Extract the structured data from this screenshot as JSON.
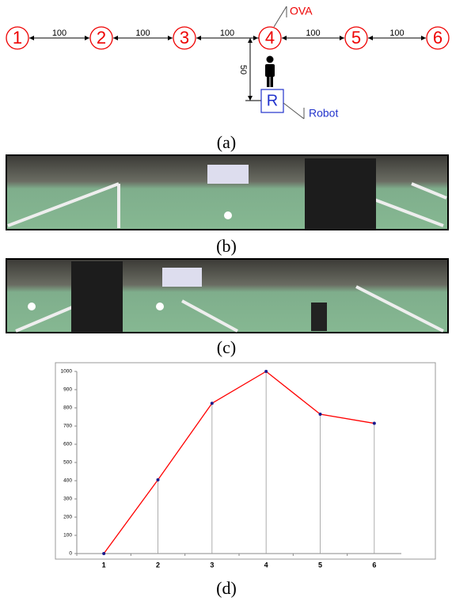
{
  "diagram": {
    "nodes": [
      {
        "label": "1"
      },
      {
        "label": "2"
      },
      {
        "label": "3"
      },
      {
        "label": "4"
      },
      {
        "label": "5"
      },
      {
        "label": "6"
      }
    ],
    "edges": [
      {
        "label": "100"
      },
      {
        "label": "100"
      },
      {
        "label": "100"
      },
      {
        "label": "100"
      },
      {
        "label": "100"
      }
    ],
    "vertical_edge": {
      "label": "50"
    },
    "robot": {
      "label": "R"
    },
    "callouts": {
      "ova": "OVA",
      "robot": "Robot"
    }
  },
  "captions": [
    "(a)",
    "(b)",
    "(c)",
    "(d)"
  ],
  "chart_data": {
    "type": "line",
    "categories": [
      "1",
      "2",
      "3",
      "4",
      "5",
      "6"
    ],
    "values": [
      0,
      405,
      825,
      1000,
      765,
      715
    ],
    "color": "#ff0000",
    "marker_color": "#1a1a8c",
    "ylim": [
      0,
      1000
    ],
    "yticks": [
      0,
      100,
      200,
      300,
      400,
      500,
      600,
      700,
      800,
      900,
      1000
    ],
    "drop_lines": true
  }
}
